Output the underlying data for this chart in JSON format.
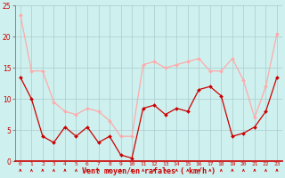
{
  "x": [
    0,
    1,
    2,
    3,
    4,
    5,
    6,
    7,
    8,
    9,
    10,
    11,
    12,
    13,
    14,
    15,
    16,
    17,
    18,
    19,
    20,
    21,
    22,
    23
  ],
  "rafales": [
    23.5,
    14.5,
    14.5,
    9.5,
    8.0,
    7.5,
    8.5,
    8.0,
    6.5,
    4.0,
    4.0,
    15.5,
    16.0,
    15.0,
    15.5,
    16.0,
    16.5,
    14.5,
    14.5,
    16.5,
    13.0,
    7.0,
    12.0,
    20.5
  ],
  "moyen": [
    13.5,
    10.0,
    4.0,
    3.0,
    5.5,
    4.0,
    5.5,
    3.0,
    4.0,
    1.0,
    0.5,
    8.5,
    9.0,
    7.5,
    8.5,
    8.0,
    11.5,
    12.0,
    10.5,
    4.0,
    4.5,
    5.5,
    8.0,
    13.5
  ],
  "color_rafales": "#ffaaaa",
  "color_moyen": "#cc0000",
  "bg_color": "#cef0ee",
  "grid_color": "#aacccc",
  "xlabel": "Vent moyen/en rafales ( km/h )",
  "ylim": [
    0,
    25
  ],
  "yticks": [
    0,
    5,
    10,
    15,
    20,
    25
  ],
  "xticks": [
    0,
    1,
    2,
    3,
    4,
    5,
    6,
    7,
    8,
    9,
    10,
    11,
    12,
    13,
    14,
    15,
    16,
    17,
    18,
    19,
    20,
    21,
    22,
    23
  ]
}
